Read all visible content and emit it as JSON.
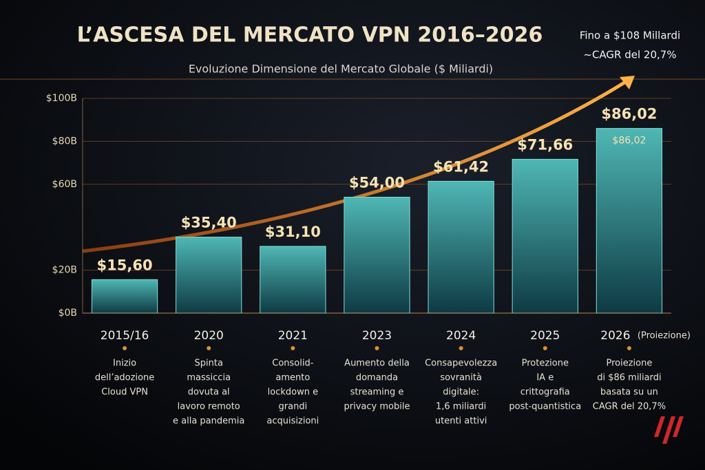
{
  "chart_data": {
    "type": "bar",
    "title": "L’ASCESA DEL MERCATO VPN 2016–2026",
    "subtitle": "Evoluzione Dimensione del Mercato Globale ($ Miliardi)",
    "annotations": [
      "Fino a $108 Millardi",
      "~CAGR del 20,7%"
    ],
    "categories": [
      "2015/16",
      "2020",
      "2021",
      "2023",
      "2024",
      "2025",
      "2026"
    ],
    "projection_note": "(Proiezione)",
    "values": [
      15.6,
      35.4,
      31.1,
      54.0,
      61.42,
      71.66,
      86.02
    ],
    "value_labels": [
      "$15,60",
      "$35,40",
      "$31,10",
      "$54,00",
      "$61,42",
      "$71,66",
      "$86,02"
    ],
    "inner_label": "$86,02",
    "color": "#2f8f96",
    "ylim": [
      0,
      100
    ],
    "yticks": [
      {
        "value": 0,
        "label": "$0B"
      },
      {
        "value": 20,
        "label": "$20B"
      },
      {
        "value": 60,
        "label": "$60B"
      },
      {
        "value": 80,
        "label": "$80B"
      },
      {
        "value": 100,
        "label": "$100B"
      }
    ],
    "grid": true,
    "descriptions": [
      [
        "Inizio",
        "dell’adozione",
        "Cloud VPN"
      ],
      [
        "Spinta",
        "massiccia",
        "dovuta al",
        "lavoro remoto",
        "e alla pandemia"
      ],
      [
        "Consolid-",
        "amento",
        "lockdown e",
        "grandi",
        "acquisizioni"
      ],
      [
        "Aumento della",
        "domanda",
        "streaming e",
        "privacy mobile"
      ],
      [
        "Consapevolezza",
        "sovranità",
        "digitale:",
        "1,6 miliardi",
        "utenti attivi"
      ],
      [
        "Protezione",
        "IA e",
        "crittografia",
        "post-quantistica"
      ],
      [
        "Proiezione",
        "di $86 miliardi",
        "basata su un",
        "CAGR del 20,7%"
      ]
    ]
  }
}
